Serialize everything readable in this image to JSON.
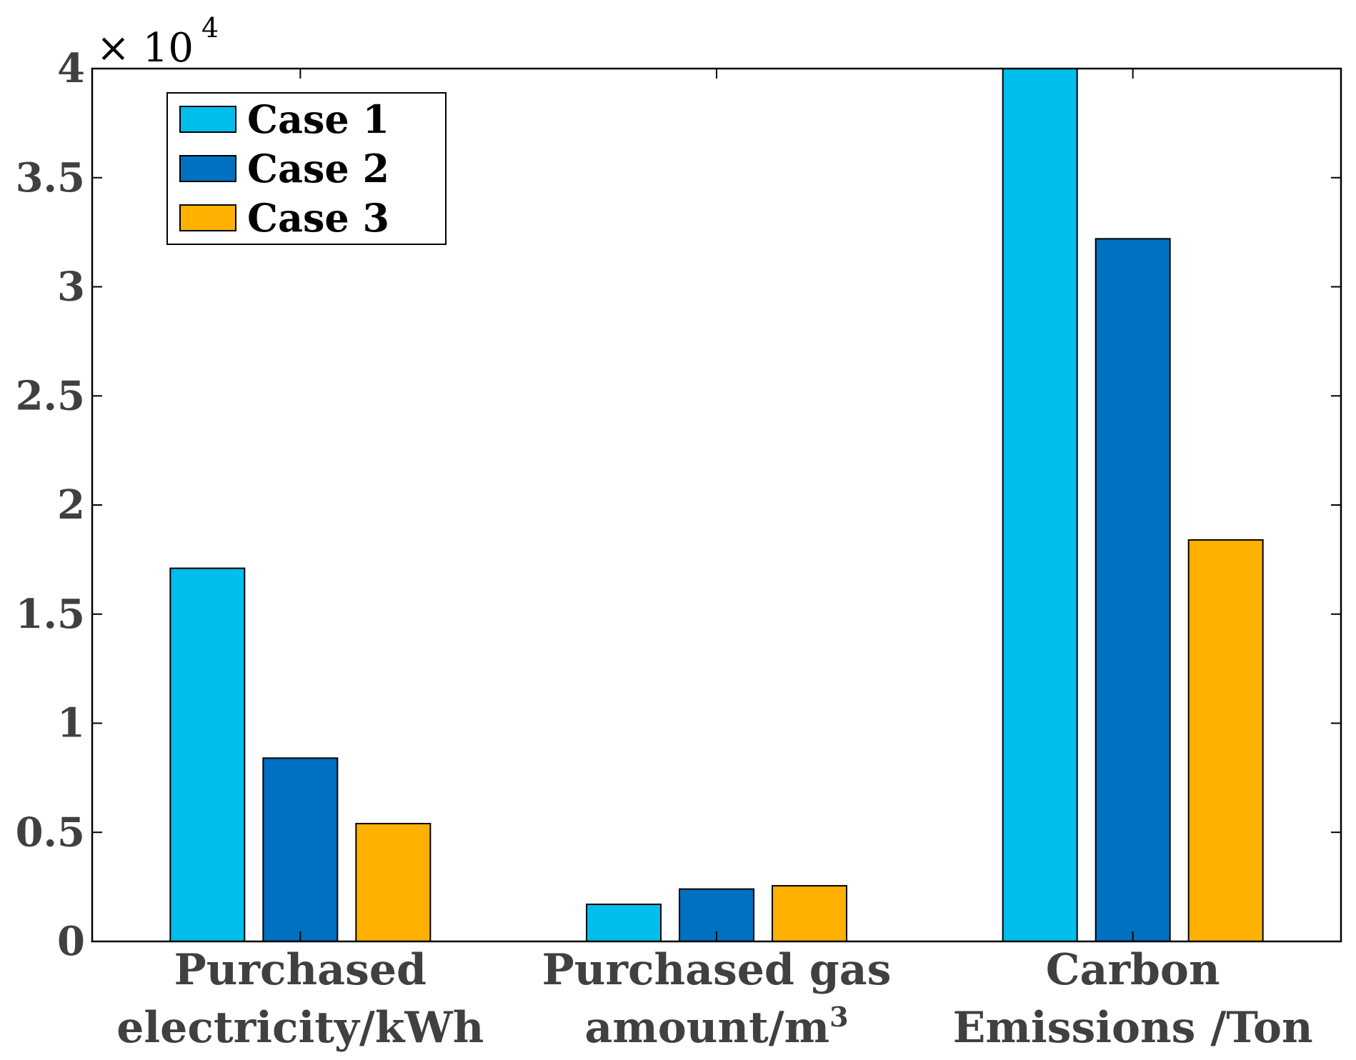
{
  "chart_data": {
    "type": "bar",
    "title": "",
    "xlabel": "",
    "ylabel": "",
    "multiplier_label": "× 10",
    "multiplier_exponent": "4",
    "ylim": [
      0,
      4
    ],
    "yticks": [
      0,
      0.5,
      1,
      1.5,
      2,
      2.5,
      3,
      3.5,
      4
    ],
    "ytick_labels": [
      "0",
      "0.5",
      "1",
      "1.5",
      "2",
      "2.5",
      "3",
      "3.5",
      "4"
    ],
    "categories": [
      {
        "lines": [
          "Purchased",
          "electricity/kWh"
        ],
        "sup": ""
      },
      {
        "lines": [
          "Purchased gas",
          "amount/m"
        ],
        "sup": "3"
      },
      {
        "lines": [
          "Carbon",
          "Emissions /Ton"
        ],
        "sup": ""
      }
    ],
    "series": [
      {
        "name": "Case 1",
        "color": "#00BEEB",
        "values": [
          1.71,
          0.17,
          4.0
        ]
      },
      {
        "name": "Case 2",
        "color": "#0070C0",
        "values": [
          0.84,
          0.24,
          3.22
        ]
      },
      {
        "name": "Case 3",
        "color": "#FFB000",
        "values": [
          0.54,
          0.255,
          1.84
        ]
      }
    ],
    "legend_position": "top-left",
    "grid": false
  }
}
